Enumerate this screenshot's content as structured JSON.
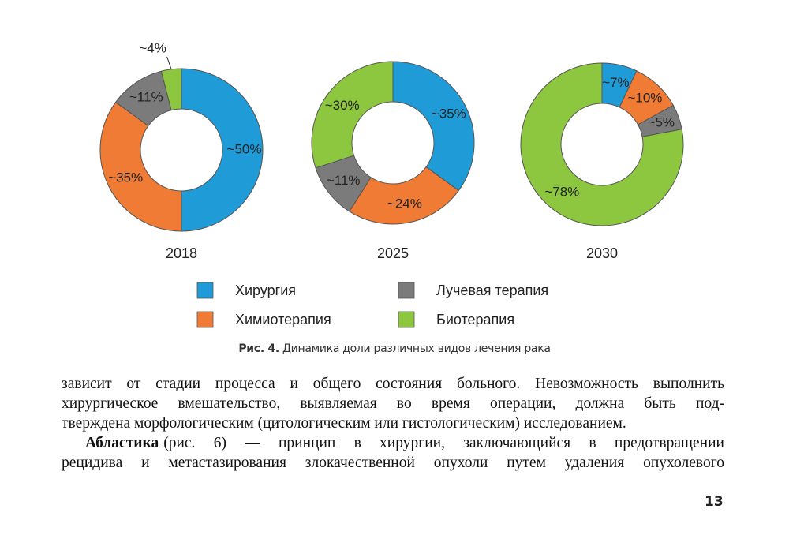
{
  "chart_data": [
    {
      "type": "pie",
      "title": "2018",
      "values": [
        50,
        35,
        11,
        4
      ],
      "value_labels": [
        "~50%",
        "~35%",
        "~11%",
        "~4%"
      ]
    },
    {
      "type": "pie",
      "title": "2025",
      "values": [
        35,
        24,
        11,
        30
      ],
      "value_labels": [
        "~35%",
        "~24%",
        "~11%",
        "~30%"
      ]
    },
    {
      "type": "pie",
      "title": "2030",
      "values": [
        7,
        10,
        5,
        78
      ],
      "value_labels": [
        "~7%",
        "~10%",
        "~5%",
        "~78%"
      ]
    }
  ],
  "legend": {
    "labels": [
      "Хирургия",
      "Химиотерапия",
      "Лучевая терапия",
      "Биотерапия"
    ],
    "colors": [
      "#1f9bd7",
      "#f07b34",
      "#7b7b7b",
      "#8dc63f"
    ]
  },
  "caption": {
    "label": "Рис. 4.",
    "text": "Динамика доли различных видов лечения рака"
  },
  "body": {
    "paragraph1": [
      "зависит от стадии процесса и общего состояния больного. Невозможность выполнить",
      "хирургическое вмешательство, выявляемая во время операции, должна быть под-",
      "тверждена морфологическим (цитологическим или гистологическим) исследованием."
    ],
    "paragraph2": {
      "term": "Абластика",
      "lines": [
        "(рис. 6) — принцип в хирургии, заключающийся в предотвращении",
        "рецидива и метастазирования злокачественной опухоли путем удаления опухолевого"
      ]
    }
  },
  "page_number": "13"
}
